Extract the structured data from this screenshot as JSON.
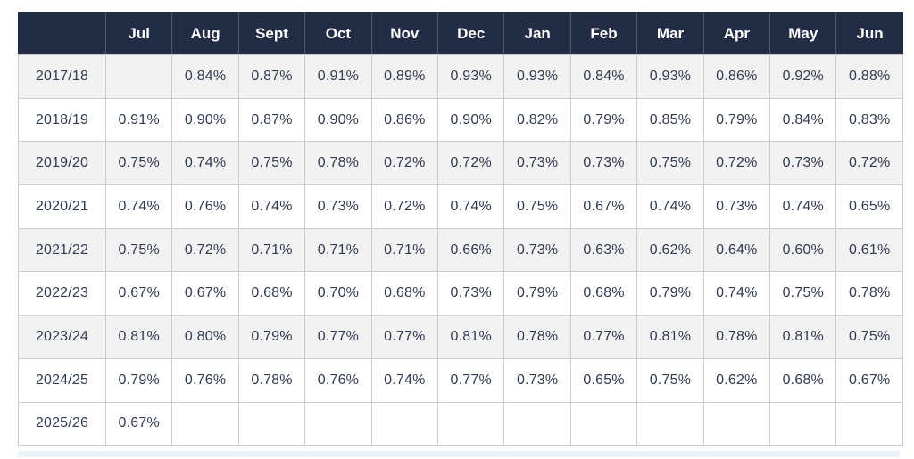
{
  "table": {
    "corner_label": "",
    "columns": [
      "Jul",
      "Aug",
      "Sept",
      "Oct",
      "Nov",
      "Dec",
      "Jan",
      "Feb",
      "Mar",
      "Apr",
      "May",
      "Jun"
    ],
    "rows": [
      {
        "year": "2017/18",
        "striped": true,
        "values": [
          "",
          "0.84%",
          "0.87%",
          "0.91%",
          "0.89%",
          "0.93%",
          "0.93%",
          "0.84%",
          "0.93%",
          "0.86%",
          "0.92%",
          "0.88%"
        ]
      },
      {
        "year": "2018/19",
        "striped": false,
        "values": [
          "0.91%",
          "0.90%",
          "0.87%",
          "0.90%",
          "0.86%",
          "0.90%",
          "0.82%",
          "0.79%",
          "0.85%",
          "0.79%",
          "0.84%",
          "0.83%"
        ]
      },
      {
        "year": "2019/20",
        "striped": true,
        "values": [
          "0.75%",
          "0.74%",
          "0.75%",
          "0.78%",
          "0.72%",
          "0.72%",
          "0.73%",
          "0.73%",
          "0.75%",
          "0.72%",
          "0.73%",
          "0.72%"
        ]
      },
      {
        "year": "2020/21",
        "striped": false,
        "values": [
          "0.74%",
          "0.76%",
          "0.74%",
          "0.73%",
          "0.72%",
          "0.74%",
          "0.75%",
          "0.67%",
          "0.74%",
          "0.73%",
          "0.74%",
          "0.65%"
        ]
      },
      {
        "year": "2021/22",
        "striped": true,
        "values": [
          "0.75%",
          "0.72%",
          "0.71%",
          "0.71%",
          "0.71%",
          "0.66%",
          "0.73%",
          "0.63%",
          "0.62%",
          "0.64%",
          "0.60%",
          "0.61%"
        ]
      },
      {
        "year": "2022/23",
        "striped": false,
        "values": [
          "0.67%",
          "0.67%",
          "0.68%",
          "0.70%",
          "0.68%",
          "0.73%",
          "0.79%",
          "0.68%",
          "0.79%",
          "0.74%",
          "0.75%",
          "0.78%"
        ]
      },
      {
        "year": "2023/24",
        "striped": true,
        "values": [
          "0.81%",
          "0.80%",
          "0.79%",
          "0.77%",
          "0.77%",
          "0.81%",
          "0.78%",
          "0.77%",
          "0.81%",
          "0.78%",
          "0.81%",
          "0.75%"
        ]
      },
      {
        "year": "2024/25",
        "striped": false,
        "values": [
          "0.79%",
          "0.76%",
          "0.78%",
          "0.76%",
          "0.74%",
          "0.77%",
          "0.73%",
          "0.65%",
          "0.75%",
          "0.62%",
          "0.68%",
          "0.67%"
        ]
      },
      {
        "year": "2025/26",
        "striped": false,
        "values": [
          "0.67%",
          "",
          "",
          "",
          "",
          "",
          "",
          "",
          "",
          "",
          "",
          ""
        ]
      }
    ]
  },
  "colors": {
    "header_bg": "#222c45",
    "header_text": "#ffffff",
    "header_divider": "#4d5871",
    "row_stripe": "#f2f2f2",
    "cell_border": "#cccccc",
    "text": "#303a50",
    "bottom_strip": "#ecf2f9",
    "page_bg": "#ffffff"
  },
  "chart_data": {
    "type": "table",
    "title": "",
    "unit": "%",
    "categories": [
      "Jul",
      "Aug",
      "Sept",
      "Oct",
      "Nov",
      "Dec",
      "Jan",
      "Feb",
      "Mar",
      "Apr",
      "May",
      "Jun"
    ],
    "series": [
      {
        "name": "2017/18",
        "values": [
          null,
          0.84,
          0.87,
          0.91,
          0.89,
          0.93,
          0.93,
          0.84,
          0.93,
          0.86,
          0.92,
          0.88
        ]
      },
      {
        "name": "2018/19",
        "values": [
          0.91,
          0.9,
          0.87,
          0.9,
          0.86,
          0.9,
          0.82,
          0.79,
          0.85,
          0.79,
          0.84,
          0.83
        ]
      },
      {
        "name": "2019/20",
        "values": [
          0.75,
          0.74,
          0.75,
          0.78,
          0.72,
          0.72,
          0.73,
          0.73,
          0.75,
          0.72,
          0.73,
          0.72
        ]
      },
      {
        "name": "2020/21",
        "values": [
          0.74,
          0.76,
          0.74,
          0.73,
          0.72,
          0.74,
          0.75,
          0.67,
          0.74,
          0.73,
          0.74,
          0.65
        ]
      },
      {
        "name": "2021/22",
        "values": [
          0.75,
          0.72,
          0.71,
          0.71,
          0.71,
          0.66,
          0.73,
          0.63,
          0.62,
          0.64,
          0.6,
          0.61
        ]
      },
      {
        "name": "2022/23",
        "values": [
          0.67,
          0.67,
          0.68,
          0.7,
          0.68,
          0.73,
          0.79,
          0.68,
          0.79,
          0.74,
          0.75,
          0.78
        ]
      },
      {
        "name": "2023/24",
        "values": [
          0.81,
          0.8,
          0.79,
          0.77,
          0.77,
          0.81,
          0.78,
          0.77,
          0.81,
          0.78,
          0.81,
          0.75
        ]
      },
      {
        "name": "2024/25",
        "values": [
          0.79,
          0.76,
          0.78,
          0.76,
          0.74,
          0.77,
          0.73,
          0.65,
          0.75,
          0.62,
          0.68,
          0.67
        ]
      },
      {
        "name": "2025/26",
        "values": [
          0.67,
          null,
          null,
          null,
          null,
          null,
          null,
          null,
          null,
          null,
          null,
          null
        ]
      }
    ]
  }
}
